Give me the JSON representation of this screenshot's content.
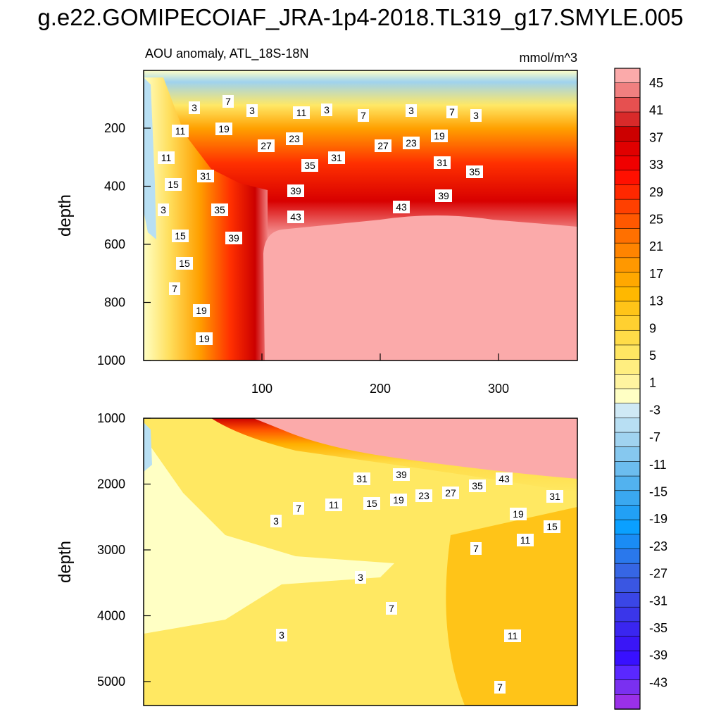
{
  "chart_data": {
    "type": "contour",
    "title": "g.e22.GOMIPECOIAF_JRA-1p4-2018.TL319_g17.SMYLE.005",
    "panel_label": "AOU anomaly, ATL_18S-18N",
    "units": "mmol/m^3",
    "ylabel": "depth",
    "x_ticks": [
      "100",
      "200",
      "300"
    ],
    "top_panel": {
      "y_ticks": [
        "200",
        "400",
        "600",
        "800",
        "1000"
      ],
      "contour_labels": [
        "3",
        "7",
        "3",
        "11",
        "3",
        "7",
        "3",
        "7",
        "3",
        "11",
        "19",
        "23",
        "27",
        "27",
        "23",
        "19",
        "11",
        "35",
        "31",
        "31",
        "35",
        "15",
        "31",
        "39",
        "39",
        "3",
        "35",
        "43",
        "43",
        "15",
        "39",
        "15",
        "7",
        "19",
        "19"
      ]
    },
    "bottom_panel": {
      "y_ticks": [
        "1000",
        "2000",
        "3000",
        "4000",
        "5000"
      ],
      "contour_labels": [
        "31",
        "39",
        "43",
        "35",
        "27",
        "23",
        "19",
        "15",
        "11",
        "7",
        "3",
        "31",
        "19",
        "15",
        "11",
        "7",
        "3",
        "7",
        "3",
        "11",
        "7"
      ]
    },
    "colorbar": {
      "labels": [
        "45",
        "41",
        "37",
        "33",
        "29",
        "25",
        "21",
        "17",
        "13",
        "9",
        "5",
        "1",
        "-3",
        "-7",
        "-11",
        "-15",
        "-19",
        "-23",
        "-27",
        "-31",
        "-35",
        "-39",
        "-43"
      ],
      "colors": [
        "#fbaaaa",
        "#f08080",
        "#e65050",
        "#d82a2a",
        "#cc0000",
        "#e00000",
        "#f00000",
        "#ff1000",
        "#ff2800",
        "#ff4000",
        "#ff5800",
        "#ff7000",
        "#ff8400",
        "#ff9800",
        "#ffa800",
        "#ffb800",
        "#ffc418",
        "#ffd030",
        "#ffdc48",
        "#ffe662",
        "#ffee80",
        "#fff4a0",
        "#ffffc4",
        "#cfe9f5",
        "#b8dff3",
        "#a0d3f0",
        "#86c8ef",
        "#6cbdef",
        "#52b2ef",
        "#3aa8f0",
        "#22a0f5",
        "#0aa0ff",
        "#1a8cf5",
        "#2a78ec",
        "#3666e4",
        "#3a56e2",
        "#3a46e6",
        "#3a36ea",
        "#3a26f0",
        "#3a16f6",
        "#3810ff",
        "#5a28ff",
        "#7a30f0",
        "#9a30e8"
      ]
    }
  }
}
